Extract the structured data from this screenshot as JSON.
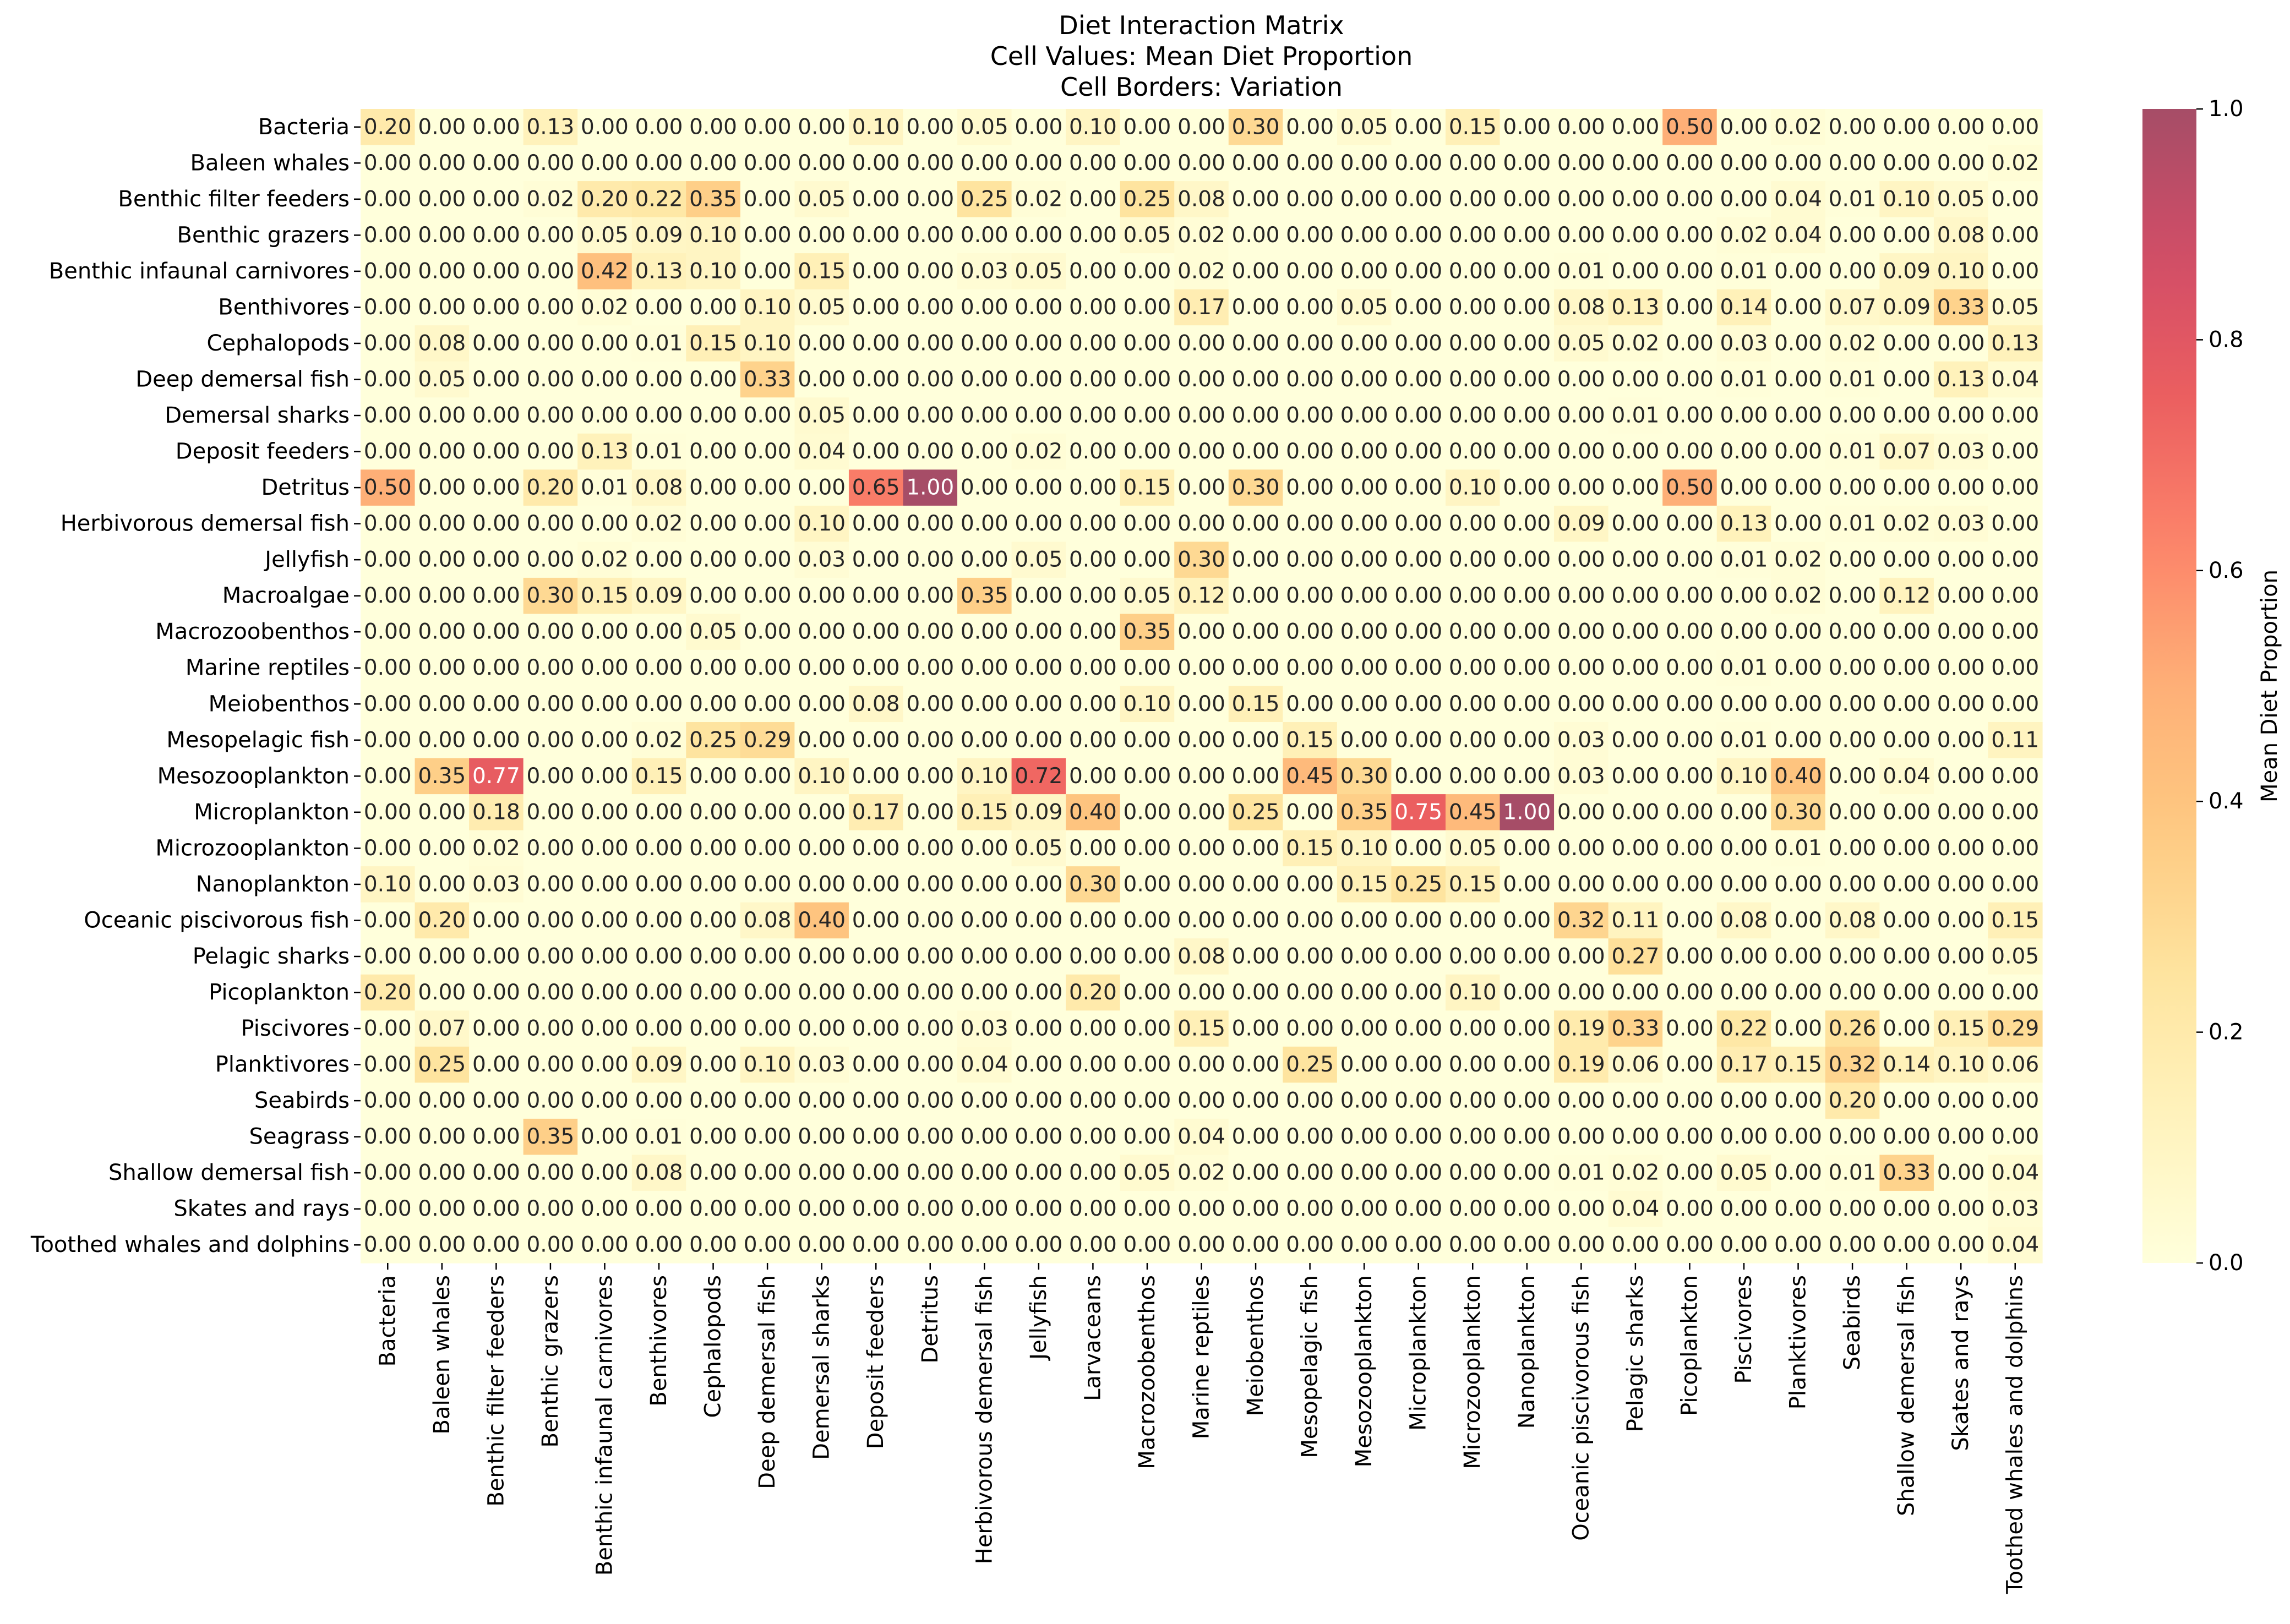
{
  "chart_data": {
    "type": "heatmap",
    "title_lines": [
      "Diet Interaction Matrix",
      "Cell Values: Mean Diet Proportion",
      "Cell Borders: Variation"
    ],
    "rows": [
      "Bacteria",
      "Baleen whales",
      "Benthic filter feeders",
      "Benthic grazers",
      "Benthic infaunal carnivores",
      "Benthivores",
      "Cephalopods",
      "Deep demersal fish",
      "Demersal sharks",
      "Deposit feeders",
      "Detritus",
      "Herbivorous demersal fish",
      "Jellyfish",
      "Macroalgae",
      "Macrozoobenthos",
      "Marine reptiles",
      "Meiobenthos",
      "Mesopelagic fish",
      "Mesozooplankton",
      "Microplankton",
      "Microzooplankton",
      "Nanoplankton",
      "Oceanic piscivorous fish",
      "Pelagic sharks",
      "Picoplankton",
      "Piscivores",
      "Planktivores",
      "Seabirds",
      "Seagrass",
      "Shallow demersal fish",
      "Skates and rays",
      "Toothed whales and dolphins"
    ],
    "columns": [
      "Bacteria",
      "Baleen whales",
      "Benthic filter feeders",
      "Benthic grazers",
      "Benthic infaunal carnivores",
      "Benthivores",
      "Cephalopods",
      "Deep demersal fish",
      "Demersal sharks",
      "Deposit feeders",
      "Detritus",
      "Herbivorous demersal fish",
      "Jellyfish",
      "Larvaceans",
      "Macrozoobenthos",
      "Marine reptiles",
      "Meiobenthos",
      "Mesopelagic fish",
      "Mesozooplankton",
      "Microplankton",
      "Microzooplankton",
      "Nanoplankton",
      "Oceanic piscivorous fish",
      "Pelagic sharks",
      "Picoplankton",
      "Piscivores",
      "Planktivores",
      "Seabirds",
      "Shallow demersal fish",
      "Skates and rays",
      "Toothed whales and dolphins"
    ],
    "values": [
      [
        0.2,
        0.0,
        0.0,
        0.13,
        0.0,
        0.0,
        0.0,
        0.0,
        0.0,
        0.1,
        0.0,
        0.05,
        0.0,
        0.1,
        0.0,
        0.0,
        0.3,
        0.0,
        0.05,
        0.0,
        0.15,
        0.0,
        0.0,
        0.0,
        0.5,
        0.0,
        0.02,
        0.0,
        0.0,
        0.0,
        0.0
      ],
      [
        0.0,
        0.0,
        0.0,
        0.0,
        0.0,
        0.0,
        0.0,
        0.0,
        0.0,
        0.0,
        0.0,
        0.0,
        0.0,
        0.0,
        0.0,
        0.0,
        0.0,
        0.0,
        0.0,
        0.0,
        0.0,
        0.0,
        0.0,
        0.0,
        0.0,
        0.0,
        0.0,
        0.0,
        0.0,
        0.0,
        0.02
      ],
      [
        0.0,
        0.0,
        0.0,
        0.02,
        0.2,
        0.22,
        0.35,
        0.0,
        0.05,
        0.0,
        0.0,
        0.25,
        0.02,
        0.0,
        0.25,
        0.08,
        0.0,
        0.0,
        0.0,
        0.0,
        0.0,
        0.0,
        0.0,
        0.0,
        0.0,
        0.0,
        0.04,
        0.01,
        0.1,
        0.05,
        0.0
      ],
      [
        0.0,
        0.0,
        0.0,
        0.0,
        0.05,
        0.09,
        0.1,
        0.0,
        0.0,
        0.0,
        0.0,
        0.0,
        0.0,
        0.0,
        0.05,
        0.02,
        0.0,
        0.0,
        0.0,
        0.0,
        0.0,
        0.0,
        0.0,
        0.0,
        0.0,
        0.02,
        0.04,
        0.0,
        0.0,
        0.08,
        0.0
      ],
      [
        0.0,
        0.0,
        0.0,
        0.0,
        0.42,
        0.13,
        0.1,
        0.0,
        0.15,
        0.0,
        0.0,
        0.03,
        0.05,
        0.0,
        0.0,
        0.02,
        0.0,
        0.0,
        0.0,
        0.0,
        0.0,
        0.0,
        0.01,
        0.0,
        0.0,
        0.01,
        0.0,
        0.0,
        0.09,
        0.1,
        0.0
      ],
      [
        0.0,
        0.0,
        0.0,
        0.0,
        0.02,
        0.0,
        0.0,
        0.1,
        0.05,
        0.0,
        0.0,
        0.0,
        0.0,
        0.0,
        0.0,
        0.17,
        0.0,
        0.0,
        0.05,
        0.0,
        0.0,
        0.0,
        0.08,
        0.13,
        0.0,
        0.14,
        0.0,
        0.07,
        0.09,
        0.33,
        0.05
      ],
      [
        0.0,
        0.08,
        0.0,
        0.0,
        0.0,
        0.01,
        0.15,
        0.1,
        0.0,
        0.0,
        0.0,
        0.0,
        0.0,
        0.0,
        0.0,
        0.0,
        0.0,
        0.0,
        0.0,
        0.0,
        0.0,
        0.0,
        0.05,
        0.02,
        0.0,
        0.03,
        0.0,
        0.02,
        0.0,
        0.0,
        0.13
      ],
      [
        0.0,
        0.05,
        0.0,
        0.0,
        0.0,
        0.0,
        0.0,
        0.33,
        0.0,
        0.0,
        0.0,
        0.0,
        0.0,
        0.0,
        0.0,
        0.0,
        0.0,
        0.0,
        0.0,
        0.0,
        0.0,
        0.0,
        0.0,
        0.0,
        0.0,
        0.01,
        0.0,
        0.01,
        0.0,
        0.13,
        0.04
      ],
      [
        0.0,
        0.0,
        0.0,
        0.0,
        0.0,
        0.0,
        0.0,
        0.0,
        0.05,
        0.0,
        0.0,
        0.0,
        0.0,
        0.0,
        0.0,
        0.0,
        0.0,
        0.0,
        0.0,
        0.0,
        0.0,
        0.0,
        0.0,
        0.01,
        0.0,
        0.0,
        0.0,
        0.0,
        0.0,
        0.0,
        0.0
      ],
      [
        0.0,
        0.0,
        0.0,
        0.0,
        0.13,
        0.01,
        0.0,
        0.0,
        0.04,
        0.0,
        0.0,
        0.0,
        0.02,
        0.0,
        0.0,
        0.0,
        0.0,
        0.0,
        0.0,
        0.0,
        0.0,
        0.0,
        0.0,
        0.0,
        0.0,
        0.0,
        0.0,
        0.01,
        0.07,
        0.03,
        0.0
      ],
      [
        0.5,
        0.0,
        0.0,
        0.2,
        0.01,
        0.08,
        0.0,
        0.0,
        0.0,
        0.65,
        1.0,
        0.0,
        0.0,
        0.0,
        0.15,
        0.0,
        0.3,
        0.0,
        0.0,
        0.0,
        0.1,
        0.0,
        0.0,
        0.0,
        0.5,
        0.0,
        0.0,
        0.0,
        0.0,
        0.0,
        0.0
      ],
      [
        0.0,
        0.0,
        0.0,
        0.0,
        0.0,
        0.02,
        0.0,
        0.0,
        0.1,
        0.0,
        0.0,
        0.0,
        0.0,
        0.0,
        0.0,
        0.0,
        0.0,
        0.0,
        0.0,
        0.0,
        0.0,
        0.0,
        0.09,
        0.0,
        0.0,
        0.13,
        0.0,
        0.01,
        0.02,
        0.03,
        0.0
      ],
      [
        0.0,
        0.0,
        0.0,
        0.0,
        0.02,
        0.0,
        0.0,
        0.0,
        0.03,
        0.0,
        0.0,
        0.0,
        0.05,
        0.0,
        0.0,
        0.3,
        0.0,
        0.0,
        0.0,
        0.0,
        0.0,
        0.0,
        0.0,
        0.0,
        0.0,
        0.01,
        0.02,
        0.0,
        0.0,
        0.0,
        0.0
      ],
      [
        0.0,
        0.0,
        0.0,
        0.3,
        0.15,
        0.09,
        0.0,
        0.0,
        0.0,
        0.0,
        0.0,
        0.35,
        0.0,
        0.0,
        0.05,
        0.12,
        0.0,
        0.0,
        0.0,
        0.0,
        0.0,
        0.0,
        0.0,
        0.0,
        0.0,
        0.0,
        0.02,
        0.0,
        0.12,
        0.0,
        0.0
      ],
      [
        0.0,
        0.0,
        0.0,
        0.0,
        0.0,
        0.0,
        0.05,
        0.0,
        0.0,
        0.0,
        0.0,
        0.0,
        0.0,
        0.0,
        0.35,
        0.0,
        0.0,
        0.0,
        0.0,
        0.0,
        0.0,
        0.0,
        0.0,
        0.0,
        0.0,
        0.0,
        0.0,
        0.0,
        0.0,
        0.0,
        0.0
      ],
      [
        0.0,
        0.0,
        0.0,
        0.0,
        0.0,
        0.0,
        0.0,
        0.0,
        0.0,
        0.0,
        0.0,
        0.0,
        0.0,
        0.0,
        0.0,
        0.0,
        0.0,
        0.0,
        0.0,
        0.0,
        0.0,
        0.0,
        0.0,
        0.0,
        0.0,
        0.01,
        0.0,
        0.0,
        0.0,
        0.0,
        0.0
      ],
      [
        0.0,
        0.0,
        0.0,
        0.0,
        0.0,
        0.0,
        0.0,
        0.0,
        0.0,
        0.08,
        0.0,
        0.0,
        0.0,
        0.0,
        0.1,
        0.0,
        0.15,
        0.0,
        0.0,
        0.0,
        0.0,
        0.0,
        0.0,
        0.0,
        0.0,
        0.0,
        0.0,
        0.0,
        0.0,
        0.0,
        0.0
      ],
      [
        0.0,
        0.0,
        0.0,
        0.0,
        0.0,
        0.02,
        0.25,
        0.29,
        0.0,
        0.0,
        0.0,
        0.0,
        0.0,
        0.0,
        0.0,
        0.0,
        0.0,
        0.15,
        0.0,
        0.0,
        0.0,
        0.0,
        0.03,
        0.0,
        0.0,
        0.01,
        0.0,
        0.0,
        0.0,
        0.0,
        0.11
      ],
      [
        0.0,
        0.35,
        0.77,
        0.0,
        0.0,
        0.15,
        0.0,
        0.0,
        0.1,
        0.0,
        0.0,
        0.1,
        0.72,
        0.0,
        0.0,
        0.0,
        0.0,
        0.45,
        0.3,
        0.0,
        0.0,
        0.0,
        0.03,
        0.0,
        0.0,
        0.1,
        0.4,
        0.0,
        0.04,
        0.0,
        0.0
      ],
      [
        0.0,
        0.0,
        0.18,
        0.0,
        0.0,
        0.0,
        0.0,
        0.0,
        0.0,
        0.17,
        0.0,
        0.15,
        0.09,
        0.4,
        0.0,
        0.0,
        0.25,
        0.0,
        0.35,
        0.75,
        0.45,
        1.0,
        0.0,
        0.0,
        0.0,
        0.0,
        0.3,
        0.0,
        0.0,
        0.0,
        0.0
      ],
      [
        0.0,
        0.0,
        0.02,
        0.0,
        0.0,
        0.0,
        0.0,
        0.0,
        0.0,
        0.0,
        0.0,
        0.0,
        0.05,
        0.0,
        0.0,
        0.0,
        0.0,
        0.15,
        0.1,
        0.0,
        0.05,
        0.0,
        0.0,
        0.0,
        0.0,
        0.0,
        0.01,
        0.0,
        0.0,
        0.0,
        0.0
      ],
      [
        0.1,
        0.0,
        0.03,
        0.0,
        0.0,
        0.0,
        0.0,
        0.0,
        0.0,
        0.0,
        0.0,
        0.0,
        0.0,
        0.3,
        0.0,
        0.0,
        0.0,
        0.0,
        0.15,
        0.25,
        0.15,
        0.0,
        0.0,
        0.0,
        0.0,
        0.0,
        0.0,
        0.0,
        0.0,
        0.0,
        0.0
      ],
      [
        0.0,
        0.2,
        0.0,
        0.0,
        0.0,
        0.0,
        0.0,
        0.08,
        0.4,
        0.0,
        0.0,
        0.0,
        0.0,
        0.0,
        0.0,
        0.0,
        0.0,
        0.0,
        0.0,
        0.0,
        0.0,
        0.0,
        0.32,
        0.11,
        0.0,
        0.08,
        0.0,
        0.08,
        0.0,
        0.0,
        0.15
      ],
      [
        0.0,
        0.0,
        0.0,
        0.0,
        0.0,
        0.0,
        0.0,
        0.0,
        0.0,
        0.0,
        0.0,
        0.0,
        0.0,
        0.0,
        0.0,
        0.08,
        0.0,
        0.0,
        0.0,
        0.0,
        0.0,
        0.0,
        0.0,
        0.27,
        0.0,
        0.0,
        0.0,
        0.0,
        0.0,
        0.0,
        0.05
      ],
      [
        0.2,
        0.0,
        0.0,
        0.0,
        0.0,
        0.0,
        0.0,
        0.0,
        0.0,
        0.0,
        0.0,
        0.0,
        0.0,
        0.2,
        0.0,
        0.0,
        0.0,
        0.0,
        0.0,
        0.0,
        0.1,
        0.0,
        0.0,
        0.0,
        0.0,
        0.0,
        0.0,
        0.0,
        0.0,
        0.0,
        0.0
      ],
      [
        0.0,
        0.07,
        0.0,
        0.0,
        0.0,
        0.0,
        0.0,
        0.0,
        0.0,
        0.0,
        0.0,
        0.03,
        0.0,
        0.0,
        0.0,
        0.15,
        0.0,
        0.0,
        0.0,
        0.0,
        0.0,
        0.0,
        0.19,
        0.33,
        0.0,
        0.22,
        0.0,
        0.26,
        0.0,
        0.15,
        0.29
      ],
      [
        0.0,
        0.25,
        0.0,
        0.0,
        0.0,
        0.09,
        0.0,
        0.1,
        0.03,
        0.0,
        0.0,
        0.04,
        0.0,
        0.0,
        0.0,
        0.0,
        0.0,
        0.25,
        0.0,
        0.0,
        0.0,
        0.0,
        0.19,
        0.06,
        0.0,
        0.17,
        0.15,
        0.32,
        0.14,
        0.1,
        0.06
      ],
      [
        0.0,
        0.0,
        0.0,
        0.0,
        0.0,
        0.0,
        0.0,
        0.0,
        0.0,
        0.0,
        0.0,
        0.0,
        0.0,
        0.0,
        0.0,
        0.0,
        0.0,
        0.0,
        0.0,
        0.0,
        0.0,
        0.0,
        0.0,
        0.0,
        0.0,
        0.0,
        0.0,
        0.2,
        0.0,
        0.0,
        0.0
      ],
      [
        0.0,
        0.0,
        0.0,
        0.35,
        0.0,
        0.01,
        0.0,
        0.0,
        0.0,
        0.0,
        0.0,
        0.0,
        0.0,
        0.0,
        0.0,
        0.04,
        0.0,
        0.0,
        0.0,
        0.0,
        0.0,
        0.0,
        0.0,
        0.0,
        0.0,
        0.0,
        0.0,
        0.0,
        0.0,
        0.0,
        0.0
      ],
      [
        0.0,
        0.0,
        0.0,
        0.0,
        0.0,
        0.08,
        0.0,
        0.0,
        0.0,
        0.0,
        0.0,
        0.0,
        0.0,
        0.0,
        0.05,
        0.02,
        0.0,
        0.0,
        0.0,
        0.0,
        0.0,
        0.0,
        0.01,
        0.02,
        0.0,
        0.05,
        0.0,
        0.01,
        0.33,
        0.0,
        0.04
      ],
      [
        0.0,
        0.0,
        0.0,
        0.0,
        0.0,
        0.0,
        0.0,
        0.0,
        0.0,
        0.0,
        0.0,
        0.0,
        0.0,
        0.0,
        0.0,
        0.0,
        0.0,
        0.0,
        0.0,
        0.0,
        0.0,
        0.0,
        0.0,
        0.04,
        0.0,
        0.0,
        0.0,
        0.0,
        0.0,
        0.0,
        0.03
      ],
      [
        0.0,
        0.0,
        0.0,
        0.0,
        0.0,
        0.0,
        0.0,
        0.0,
        0.0,
        0.0,
        0.0,
        0.0,
        0.0,
        0.0,
        0.0,
        0.0,
        0.0,
        0.0,
        0.0,
        0.0,
        0.0,
        0.0,
        0.0,
        0.0,
        0.0,
        0.0,
        0.0,
        0.0,
        0.0,
        0.0,
        0.04
      ]
    ],
    "value_format": "0.00",
    "colorbar": {
      "label": "Mean Diet Proportion",
      "range": [
        0.0,
        1.0
      ],
      "ticks": [
        "0.0",
        "0.2",
        "0.4",
        "0.6",
        "0.8",
        "1.0"
      ],
      "colormap": "YlOrRd (alpha 0.7)",
      "placement": "right"
    }
  }
}
